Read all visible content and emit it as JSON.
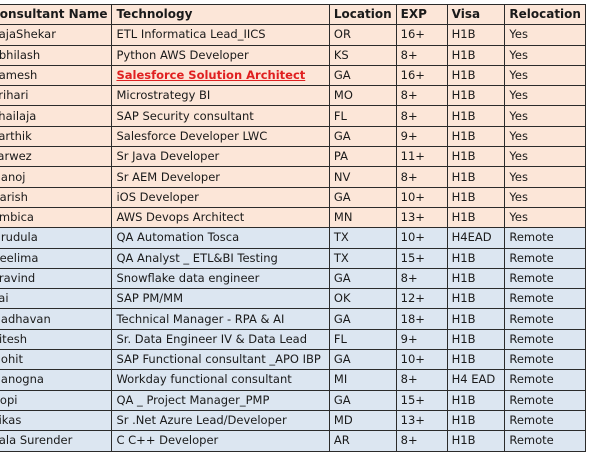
{
  "headers": [
    "Consultant Name",
    "Technology",
    "Location",
    "EXP",
    "Visa",
    "Relocation"
  ],
  "rows": [
    {
      "name": "RajaShekar",
      "tech": "ETL Informatica Lead_IICS",
      "loc": "OR",
      "exp": "16+",
      "visa": "H1B",
      "rel": "Yes",
      "group": "a",
      "highlight": false
    },
    {
      "name": "Abhilash",
      "tech": "Python AWS Developer",
      "loc": "KS",
      "exp": "8+",
      "visa": "H1B",
      "rel": "Yes",
      "group": "a",
      "highlight": false
    },
    {
      "name": "Ramesh",
      "tech": "Salesforce Solution Architect",
      "loc": "GA",
      "exp": "16+",
      "visa": "H1B",
      "rel": "Yes",
      "group": "a",
      "highlight": true
    },
    {
      "name": "Srihari",
      "tech": "Microstrategy BI",
      "loc": "MO",
      "exp": "8+",
      "visa": "H1B",
      "rel": "Yes",
      "group": "a",
      "highlight": false
    },
    {
      "name": "Shailaja",
      "tech": "SAP Security consultant",
      "loc": "FL",
      "exp": "8+",
      "visa": "H1B",
      "rel": "Yes",
      "group": "a",
      "highlight": false
    },
    {
      "name": "Karthik",
      "tech": "Salesforce Developer  LWC",
      "loc": "GA",
      "exp": "9+",
      "visa": "H1B",
      "rel": "Yes",
      "group": "a",
      "highlight": false
    },
    {
      "name": "Parwez",
      "tech": "Sr Java Developer",
      "loc": "PA",
      "exp": "11+",
      "visa": "H1B",
      "rel": "Yes",
      "group": "a",
      "highlight": false
    },
    {
      "name": "Manoj",
      "tech": "Sr AEM Developer",
      "loc": "NV",
      "exp": "8+",
      "visa": "H1B",
      "rel": "Yes",
      "group": "a",
      "highlight": false
    },
    {
      "name": "Harish",
      "tech": "iOS Developer",
      "loc": "GA",
      "exp": "10+",
      "visa": "H1B",
      "rel": "Yes",
      "group": "a",
      "highlight": false
    },
    {
      "name": "Ambica",
      "tech": "AWS Devops Architect",
      "loc": "MN",
      "exp": "13+",
      "visa": "H1B",
      "rel": "Yes",
      "group": "a",
      "highlight": false
    },
    {
      "name": "Mrudula",
      "tech": "QA Automation Tosca",
      "loc": "TX",
      "exp": "10+",
      "visa": "H4EAD",
      "rel": "Remote",
      "group": "b",
      "highlight": false
    },
    {
      "name": "Neelima",
      "tech": "QA Analyst _ ETL&BI Testing",
      "loc": "TX",
      "exp": "15+",
      "visa": "H1B",
      "rel": "Remote",
      "group": "b",
      "highlight": false
    },
    {
      "name": "Aravind",
      "tech": "Snowflake data engineer",
      "loc": "GA",
      "exp": "8+",
      "visa": "H1B",
      "rel": "Remote",
      "group": "b",
      "highlight": false
    },
    {
      "name": "Sai",
      "tech": "SAP PM/MM",
      "loc": "OK",
      "exp": "12+",
      "visa": "H1B",
      "rel": "Remote",
      "group": "b",
      "highlight": false
    },
    {
      "name": "Madhavan",
      "tech": "Technical Manager - RPA & AI",
      "loc": "GA",
      "exp": "18+",
      "visa": "H1B",
      "rel": "Remote",
      "group": "b",
      "highlight": false
    },
    {
      "name": "Ritesh",
      "tech": "Sr. Data Engineer IV & Data Lead",
      "loc": "FL",
      "exp": "9+",
      "visa": "H1B",
      "rel": "Remote",
      "group": "b",
      "highlight": false
    },
    {
      "name": "Mohit",
      "tech": "SAP Functional consultant _APO IBP",
      "loc": "GA",
      "exp": "10+",
      "visa": "H1B",
      "rel": "Remote",
      "group": "b",
      "highlight": false
    },
    {
      "name": "Manogna",
      "tech": "Workday functional consultant",
      "loc": "MI",
      "exp": "8+",
      "visa": "H4 EAD",
      "rel": "Remote",
      "group": "b",
      "highlight": false
    },
    {
      "name": "Gopi",
      "tech": "QA _ Project Manager_PMP",
      "loc": "GA",
      "exp": "15+",
      "visa": "H1B",
      "rel": "Remote",
      "group": "b",
      "highlight": false
    },
    {
      "name": "Vikas",
      "tech": "Sr .Net Azure Lead/Developer",
      "loc": "MD",
      "exp": "13+",
      "visa": "H1B",
      "rel": "Remote",
      "group": "b",
      "highlight": false
    },
    {
      "name": "Bala Surender",
      "tech": "C C++ Developer",
      "loc": "AR",
      "exp": "8+",
      "visa": "H1B",
      "rel": "Remote",
      "group": "b",
      "highlight": false
    }
  ]
}
